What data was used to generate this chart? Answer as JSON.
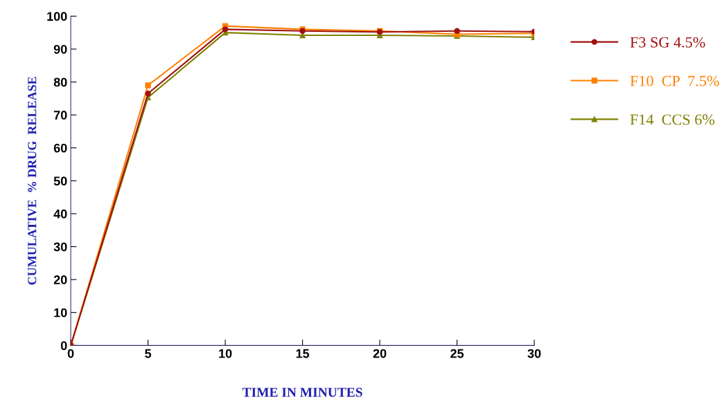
{
  "chart_data": {
    "type": "line",
    "xlabel": "TIME IN MINUTES",
    "ylabel": "CUMULATIVE  % DRUG  RELEASE",
    "x": [
      0,
      5,
      10,
      15,
      20,
      25,
      30
    ],
    "series": [
      {
        "name": "F3 SG 4.5%",
        "color": "#a01010",
        "marker": "circle",
        "values": [
          0,
          76.5,
          96,
          95.5,
          95.2,
          95.5,
          95.3
        ]
      },
      {
        "name": "F10  CP  7.5%",
        "color": "#ff8000",
        "marker": "square",
        "values": [
          0,
          79,
          97,
          96,
          95.5,
          94.5,
          94.8
        ]
      },
      {
        "name": "F14  CCS 6%",
        "color": "#808000",
        "marker": "triangle",
        "values": [
          0,
          75.3,
          95,
          94.2,
          94.2,
          94,
          93.6
        ]
      }
    ],
    "xlim": [
      0,
      30
    ],
    "xticks": [
      0,
      5,
      10,
      15,
      20,
      25,
      30
    ],
    "ylim": [
      0,
      100
    ],
    "yticks": [
      0,
      10,
      20,
      30,
      40,
      50,
      60,
      70,
      80,
      90,
      100
    ],
    "grid": false,
    "legend": "right",
    "line_style": "solid"
  }
}
